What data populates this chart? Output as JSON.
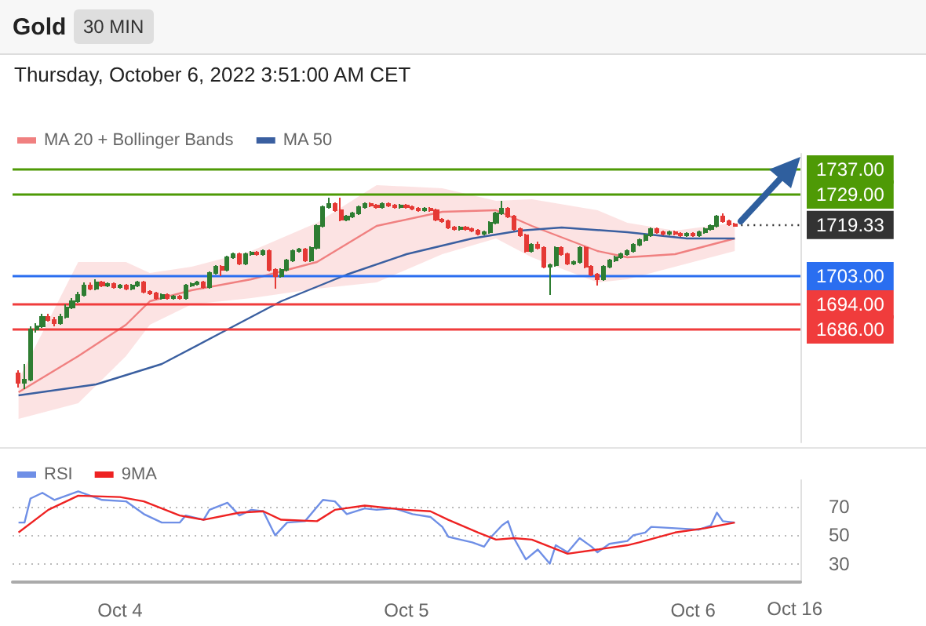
{
  "chart_data": [
    {
      "type": "candlestick",
      "title": "Gold",
      "subtitle": "Thursday, October 6, 2022 3:51:00 AM CET",
      "annotations": [
        "30 MIN"
      ],
      "legend": "top left",
      "tick_labels": false,
      "xlim": [
        "2022-10-03T15:00",
        "2022-10-06T09:00"
      ],
      "ylim": [
        1650,
        1742
      ],
      "series": [
        {
          "colors": [
            "#e53935",
            "#2e7d32",
            "#2e7d32",
            "#2e7d32",
            "#2e7d32",
            "#e53935",
            "#e53935",
            "#2e7d32",
            "#2e7d32",
            "#2e7d32",
            "#2e7d32",
            "#2e7d32",
            "#e53935",
            "#2e7d32",
            "#e53935",
            "#2e7d32",
            "#e53935",
            "#2e7d32",
            "#e53935",
            "#2e7d32",
            "#2e7d32",
            "#e53935",
            "#e53935",
            "#e53935",
            "#2e7d32",
            "#e53935",
            "#2e7d32",
            "#e53935",
            "#2e7d32",
            "#2e7d32",
            "#2e7d32",
            "#e53935",
            "#2e7d32",
            "#2e7d32",
            "#e53935",
            "#2e7d32",
            "#2e7d32",
            "#e53935",
            "#2e7d32",
            "#2e7d32",
            "#e53935",
            "#2e7d32",
            "#e53935",
            "#e53935",
            "#2e7d32",
            "#2e7d32",
            "#2e7d32",
            "#2e7d32",
            "#e53935",
            "#2e7d32",
            "#2e7d32",
            "#2e7d32",
            "#2e7d32",
            "#e53935",
            "#e53935",
            "#2e7d32",
            "#2e7d32",
            "#2e7d32",
            "#2e7d32",
            "#e53935",
            "#e53935",
            "#2e7d32",
            "#e53935",
            "#e53935",
            "#2e7d32",
            "#e53935",
            "#e53935",
            "#e53935",
            "#2e7d32",
            "#e53935",
            "#e53935",
            "#e53935",
            "#e53935",
            "#e53935",
            "#2e7d32",
            "#e53935",
            "#e53935",
            "#e53935",
            "#2e7d32",
            "#2e7d32",
            "#2e7d32",
            "#2e7d32",
            "#e53935",
            "#e53935",
            "#e53935",
            "#e53935",
            "#2e7d32",
            "#e53935",
            "#e53935",
            "#2e7d32",
            "#2e7d32",
            "#e53935",
            "#e53935",
            "#2e7d32",
            "#2e7d32",
            "#e53935",
            "#e53935",
            "#e53935",
            "#2e7d32",
            "#2e7d32",
            "#2e7d32",
            "#2e7d32",
            "#2e7d32",
            "#2e7d32",
            "#2e7d32",
            "#2e7d32",
            "#2e7d32",
            "#e53935",
            "#e53935",
            "#2e7d32",
            "#e53935",
            "#e53935",
            "#2e7d32",
            "#e53935",
            "#2e7d32",
            "#2e7d32",
            "#2e7d32",
            "#2e7d32",
            "#e53935",
            "#e53935",
            "#e53935"
          ],
          "x": [
            "2022-10-03T15:30",
            "2022-10-03T16:00",
            "2022-10-03T16:30",
            "2022-10-03T17:00",
            "2022-10-03T17:30",
            "2022-10-03T18:00",
            "2022-10-03T18:30",
            "2022-10-03T19:00",
            "2022-10-03T19:30",
            "2022-10-03T20:00",
            "2022-10-03T20:30",
            "2022-10-03T21:00",
            "2022-10-03T21:30",
            "2022-10-03T22:00",
            "2022-10-03T22:30",
            "2022-10-03T23:00",
            "2022-10-03T23:30",
            "2022-10-04T00:00",
            "2022-10-04T00:30",
            "2022-10-04T01:00",
            "2022-10-04T01:30",
            "2022-10-04T02:00",
            "2022-10-04T02:30",
            "2022-10-04T03:00",
            "2022-10-04T03:30",
            "2022-10-04T04:00",
            "2022-10-04T04:30",
            "2022-10-04T05:00",
            "2022-10-04T05:30",
            "2022-10-04T06:00",
            "2022-10-04T06:30",
            "2022-10-04T07:00",
            "2022-10-04T07:30",
            "2022-10-04T08:00",
            "2022-10-04T08:30",
            "2022-10-04T09:00",
            "2022-10-04T09:30",
            "2022-10-04T10:00",
            "2022-10-04T10:30",
            "2022-10-04T11:00",
            "2022-10-04T11:30",
            "2022-10-04T12:00",
            "2022-10-04T12:30",
            "2022-10-04T13:00",
            "2022-10-04T13:30",
            "2022-10-04T14:00",
            "2022-10-04T14:30",
            "2022-10-04T15:00",
            "2022-10-04T15:30",
            "2022-10-04T16:00",
            "2022-10-04T16:30",
            "2022-10-04T17:00",
            "2022-10-04T17:30",
            "2022-10-04T18:00",
            "2022-10-04T18:30",
            "2022-10-04T19:00",
            "2022-10-04T19:30",
            "2022-10-04T20:00",
            "2022-10-04T20:30",
            "2022-10-04T21:00",
            "2022-10-04T21:30",
            "2022-10-04T22:00",
            "2022-10-04T22:30",
            "2022-10-04T23:00",
            "2022-10-04T23:30",
            "2022-10-05T00:00",
            "2022-10-05T00:30",
            "2022-10-05T01:00",
            "2022-10-05T01:30",
            "2022-10-05T02:00",
            "2022-10-05T02:30",
            "2022-10-05T03:00",
            "2022-10-05T03:30",
            "2022-10-05T04:00",
            "2022-10-05T04:30",
            "2022-10-05T05:00",
            "2022-10-05T05:30",
            "2022-10-05T06:00",
            "2022-10-05T06:30",
            "2022-10-05T07:00",
            "2022-10-05T07:30",
            "2022-10-05T08:00",
            "2022-10-05T08:30",
            "2022-10-05T09:00",
            "2022-10-05T09:30",
            "2022-10-05T10:00",
            "2022-10-05T10:30",
            "2022-10-05T11:00",
            "2022-10-05T11:30",
            "2022-10-05T12:00",
            "2022-10-05T12:30",
            "2022-10-05T13:00",
            "2022-10-05T13:30",
            "2022-10-05T14:00",
            "2022-10-05T14:30",
            "2022-10-05T15:00",
            "2022-10-05T15:30",
            "2022-10-05T16:00",
            "2022-10-05T16:30",
            "2022-10-05T17:00",
            "2022-10-05T17:30",
            "2022-10-05T18:00",
            "2022-10-05T18:30",
            "2022-10-05T19:00",
            "2022-10-05T19:30",
            "2022-10-05T20:00",
            "2022-10-05T20:30",
            "2022-10-05T21:00",
            "2022-10-05T21:30",
            "2022-10-05T22:00",
            "2022-10-05T22:30",
            "2022-10-05T23:00",
            "2022-10-05T23:30",
            "2022-10-06T00:00",
            "2022-10-06T00:30",
            "2022-10-06T01:00",
            "2022-10-06T01:30",
            "2022-10-06T02:00",
            "2022-10-06T02:30",
            "2022-10-06T03:00",
            "2022-10-06T03:30"
          ],
          "ohlc": [
            [
              1672,
              1673,
              1667.5,
              1669
            ],
            [
              1669,
              1675,
              1667,
              1670
            ],
            [
              1670,
              1687,
              1669.5,
              1686
            ],
            [
              1686,
              1688,
              1685,
              1687
            ],
            [
              1687,
              1691,
              1686.5,
              1690
            ],
            [
              1690,
              1691,
              1688.5,
              1689
            ],
            [
              1689,
              1690,
              1687,
              1688
            ],
            [
              1688,
              1691,
              1687.5,
              1690
            ],
            [
              1690,
              1694,
              1689.5,
              1693
            ],
            [
              1693,
              1696,
              1692.5,
              1695
            ],
            [
              1695,
              1698,
              1694.5,
              1697
            ],
            [
              1697,
              1701,
              1696.5,
              1700
            ],
            [
              1700,
              1701,
              1698.5,
              1699
            ],
            [
              1699,
              1702,
              1698.5,
              1701
            ],
            [
              1701,
              1701.5,
              1699.5,
              1700
            ],
            [
              1700,
              1701,
              1699.5,
              1700.5
            ],
            [
              1700.5,
              1701,
              1699,
              1699.5
            ],
            [
              1699.5,
              1700.5,
              1699,
              1700
            ],
            [
              1700,
              1700.5,
              1698.5,
              1699
            ],
            [
              1699,
              1700.5,
              1698.5,
              1700
            ],
            [
              1700,
              1701.5,
              1699.5,
              1701
            ],
            [
              1701,
              1701.5,
              1697.5,
              1698
            ],
            [
              1698,
              1698.5,
              1697,
              1697.5
            ],
            [
              1697.5,
              1698,
              1695.5,
              1696
            ],
            [
              1696,
              1697.5,
              1695.5,
              1697
            ],
            [
              1697,
              1697.5,
              1695.5,
              1696
            ],
            [
              1696,
              1697,
              1695.5,
              1696.5
            ],
            [
              1696.5,
              1697,
              1695.5,
              1696
            ],
            [
              1696,
              1700.5,
              1695.5,
              1700
            ],
            [
              1700,
              1701,
              1699.5,
              1700.5
            ],
            [
              1700.5,
              1701.5,
              1700,
              1701
            ],
            [
              1701,
              1701.5,
              1699,
              1699.5
            ],
            [
              1699.5,
              1704.5,
              1699,
              1704
            ],
            [
              1704,
              1706.5,
              1703.5,
              1706
            ],
            [
              1706,
              1706.5,
              1703,
              1705
            ],
            [
              1705,
              1709.5,
              1704.5,
              1709
            ],
            [
              1709,
              1710.5,
              1708.5,
              1710
            ],
            [
              1710,
              1710.5,
              1706.5,
              1707
            ],
            [
              1707,
              1710.5,
              1706.5,
              1710
            ],
            [
              1710,
              1711,
              1709.5,
              1710.5
            ],
            [
              1710.5,
              1711,
              1709.5,
              1710
            ],
            [
              1710,
              1711.5,
              1709.5,
              1711
            ],
            [
              1711,
              1711.5,
              1704.5,
              1705
            ],
            [
              1705,
              1705.5,
              1699,
              1703
            ],
            [
              1703,
              1705.5,
              1702.5,
              1705
            ],
            [
              1705,
              1708.5,
              1704.5,
              1708
            ],
            [
              1708,
              1711.5,
              1707.5,
              1711
            ],
            [
              1711,
              1712,
              1710.5,
              1711.5
            ],
            [
              1711.5,
              1712,
              1707.5,
              1708
            ],
            [
              1708,
              1712.5,
              1707.5,
              1712
            ],
            [
              1712,
              1719.5,
              1711.5,
              1719
            ],
            [
              1719,
              1725.5,
              1718.5,
              1725
            ],
            [
              1725,
              1728,
              1724.5,
              1726
            ],
            [
              1726,
              1726.5,
              1723.5,
              1724
            ],
            [
              1724,
              1728,
              1720.5,
              1721
            ],
            [
              1721,
              1722.5,
              1720.5,
              1722
            ],
            [
              1722,
              1723.5,
              1721.5,
              1723
            ],
            [
              1723,
              1725.5,
              1722.5,
              1725
            ],
            [
              1725,
              1726.5,
              1724.5,
              1726
            ],
            [
              1726,
              1726.5,
              1725,
              1725.5
            ],
            [
              1725.5,
              1726,
              1724.5,
              1725
            ],
            [
              1725,
              1726.5,
              1724.5,
              1726
            ],
            [
              1726,
              1726.5,
              1725,
              1725.5
            ],
            [
              1725.5,
              1726,
              1724.5,
              1725
            ],
            [
              1725,
              1726,
              1724.5,
              1725.5
            ],
            [
              1725.5,
              1726,
              1724.5,
              1725
            ],
            [
              1725,
              1725.5,
              1724,
              1724.5
            ],
            [
              1724.5,
              1725,
              1723.5,
              1724
            ],
            [
              1724,
              1725,
              1723.5,
              1724.5
            ],
            [
              1724.5,
              1725,
              1723.5,
              1724
            ],
            [
              1724,
              1724.5,
              1720.5,
              1721
            ],
            [
              1721,
              1721.5,
              1720,
              1720.5
            ],
            [
              1720.5,
              1721,
              1718,
              1718.5
            ],
            [
              1718.5,
              1719,
              1717.5,
              1718
            ],
            [
              1718,
              1719,
              1717.5,
              1718.5
            ],
            [
              1718.5,
              1719,
              1717.5,
              1718
            ],
            [
              1718,
              1718.5,
              1717,
              1717.5
            ],
            [
              1717.5,
              1718,
              1716,
              1716.5
            ],
            [
              1716.5,
              1717.5,
              1716,
              1717
            ],
            [
              1717,
              1720.5,
              1716.5,
              1720
            ],
            [
              1720,
              1723.5,
              1719.5,
              1723
            ],
            [
              1723,
              1727,
              1722.5,
              1724.5
            ],
            [
              1724.5,
              1725,
              1721.5,
              1722
            ],
            [
              1722,
              1722.5,
              1717.5,
              1718
            ],
            [
              1718,
              1718.5,
              1715.5,
              1716
            ],
            [
              1716,
              1716.5,
              1710.5,
              1711
            ],
            [
              1711,
              1713.5,
              1710.5,
              1713
            ],
            [
              1713,
              1714,
              1711.5,
              1712
            ],
            [
              1712,
              1712.5,
              1705.5,
              1706
            ],
            [
              1706,
              1707,
              1697,
              1706.5
            ],
            [
              1706.5,
              1712.5,
              1706,
              1712
            ],
            [
              1712,
              1712.5,
              1709.5,
              1710
            ],
            [
              1710,
              1710.5,
              1706.5,
              1707
            ],
            [
              1707,
              1708,
              1706.5,
              1707.5
            ],
            [
              1707.5,
              1712.5,
              1707,
              1712
            ],
            [
              1712,
              1712.5,
              1705.5,
              1706
            ],
            [
              1706,
              1706.5,
              1703,
              1703.5
            ],
            [
              1703.5,
              1704,
              1700,
              1702
            ],
            [
              1702,
              1706.5,
              1701.5,
              1706
            ],
            [
              1706,
              1708.5,
              1705.5,
              1708
            ],
            [
              1708,
              1709.5,
              1707.5,
              1709
            ],
            [
              1709,
              1710.5,
              1708.5,
              1710
            ],
            [
              1710,
              1711.5,
              1709.5,
              1711
            ],
            [
              1711,
              1713.5,
              1710.5,
              1713
            ],
            [
              1713,
              1715,
              1712.5,
              1714.5
            ],
            [
              1714.5,
              1716.5,
              1714,
              1716
            ],
            [
              1716,
              1718.5,
              1715.5,
              1718
            ],
            [
              1718,
              1718.5,
              1716.5,
              1717
            ],
            [
              1717,
              1717.5,
              1716,
              1716.5
            ],
            [
              1716.5,
              1717.5,
              1716,
              1717
            ],
            [
              1717,
              1717.5,
              1716,
              1716.5
            ],
            [
              1716.5,
              1717,
              1715.5,
              1716
            ],
            [
              1716,
              1717,
              1715.5,
              1716.5
            ],
            [
              1716.5,
              1717,
              1715.5,
              1716
            ],
            [
              1716,
              1717.5,
              1715.5,
              1717
            ],
            [
              1717,
              1718.5,
              1716.5,
              1718
            ],
            [
              1718,
              1719.5,
              1717.5,
              1719
            ],
            [
              1719,
              1722.5,
              1718.5,
              1722
            ],
            [
              1722,
              1723,
              1720,
              1720.5
            ],
            [
              1720.5,
              1721,
              1719,
              1719.5
            ],
            [
              1719.5,
              1720,
              1719,
              1719
            ]
          ]
        },
        {
          "type": "line",
          "name": "MA 20 + Bollinger Bands",
          "color": "#f08080",
          "x": [
            "2022-10-03T15:30",
            "2022-10-03T20:30",
            "2022-10-04T00:30",
            "2022-10-04T02:30",
            "2022-10-04T06:00",
            "2022-10-04T11:00",
            "2022-10-04T16:30",
            "2022-10-04T21:30",
            "2022-10-05T03:00",
            "2022-10-05T07:30",
            "2022-10-05T10:30",
            "2022-10-05T16:00",
            "2022-10-05T18:30",
            "2022-10-05T22:30",
            "2022-10-06T03:30"
          ],
          "values": [
            1666,
            1677.5,
            1687.5,
            1695,
            1698.5,
            1702,
            1707.5,
            1719,
            1723.5,
            1724,
            1719,
            1711,
            1709,
            1710,
            1715
          ],
          "upper": [
            1670,
            1707.5,
            1707.5,
            1704,
            1706,
            1711,
            1720,
            1732,
            1731,
            1727,
            1727.5,
            1724,
            1720,
            1717.5,
            1720
          ],
          "lower": [
            1657.5,
            1662.5,
            1677.5,
            1687.5,
            1694,
            1696,
            1699,
            1701,
            1710,
            1715,
            1709,
            1701,
            1702,
            1706,
            1711
          ]
        },
        {
          "type": "line",
          "name": "MA 50",
          "color": "#3a5fa0",
          "x": [
            "2022-10-03T15:30",
            "2022-10-03T22:00",
            "2022-10-04T03:30",
            "2022-10-04T08:30",
            "2022-10-04T13:30",
            "2022-10-04T19:00",
            "2022-10-05T00:00",
            "2022-10-05T05:30",
            "2022-10-05T09:30",
            "2022-10-05T13:00",
            "2022-10-05T18:30",
            "2022-10-05T23:30",
            "2022-10-06T03:30"
          ],
          "values": [
            1665,
            1668.5,
            1675,
            1685,
            1695,
            1703.5,
            1710,
            1715,
            1717.5,
            1718.5,
            1717,
            1715,
            1715
          ]
        }
      ],
      "ref_lines": [
        {
          "axis": "y",
          "value": 1737,
          "label": "1737.00",
          "color": "#4e9a06"
        },
        {
          "axis": "y",
          "value": 1729,
          "label": "1729.00",
          "color": "#4e9a06"
        },
        {
          "axis": "y",
          "value": 1719.33,
          "label": "1719.33",
          "color": "#333333",
          "line_style": "dotted"
        },
        {
          "axis": "y",
          "value": 1703,
          "label": "1703.00",
          "color": "#2a6ef0"
        },
        {
          "axis": "y",
          "value": 1694,
          "label": "1694.00",
          "color": "#f03c3c"
        },
        {
          "axis": "y",
          "value": 1686,
          "label": "1686.00",
          "color": "#f03c3c"
        }
      ]
    },
    {
      "type": "line",
      "legend": "top left",
      "grid": "y",
      "xlim": [
        "2022-10-03T15:00",
        "2022-10-06T09:00"
      ],
      "xticks": [
        {
          "value": "2022-10-04",
          "label": "Oct 4"
        },
        {
          "value": "2022-10-05",
          "label": "Oct 5"
        },
        {
          "value": "2022-10-06",
          "label": "Oct 6"
        }
      ],
      "annotations": [
        "Oct 16"
      ],
      "ylim": [
        17,
        89
      ],
      "yticks": [
        30,
        50,
        70
      ],
      "series": [
        {
          "name": "RSI",
          "color": "#6f8fe6",
          "x": [
            "2022-10-03T15:30",
            "2022-10-03T16:00",
            "2022-10-03T16:30",
            "2022-10-03T17:30",
            "2022-10-03T18:30",
            "2022-10-03T20:30",
            "2022-10-03T22:30",
            "2022-10-04T00:30",
            "2022-10-04T02:00",
            "2022-10-04T03:30",
            "2022-10-04T05:00",
            "2022-10-04T05:30",
            "2022-10-04T07:00",
            "2022-10-04T07:30",
            "2022-10-04T09:00",
            "2022-10-04T10:00",
            "2022-10-04T11:00",
            "2022-10-04T12:00",
            "2022-10-04T13:00",
            "2022-10-04T14:00",
            "2022-10-04T15:30",
            "2022-10-04T16:30",
            "2022-10-04T17:00",
            "2022-10-04T18:00",
            "2022-10-04T19:00",
            "2022-10-04T20:30",
            "2022-10-04T21:30",
            "2022-10-04T23:00",
            "2022-10-05T00:30",
            "2022-10-05T02:00",
            "2022-10-05T03:00",
            "2022-10-05T03:30",
            "2022-10-05T04:30",
            "2022-10-05T05:30",
            "2022-10-05T06:30",
            "2022-10-05T07:00",
            "2022-10-05T08:00",
            "2022-10-05T08:30",
            "2022-10-05T09:00",
            "2022-10-05T10:00",
            "2022-10-05T11:00",
            "2022-10-05T12:00",
            "2022-10-05T12:30",
            "2022-10-05T13:30",
            "2022-10-05T14:30",
            "2022-10-05T15:30",
            "2022-10-05T16:00",
            "2022-10-05T17:00",
            "2022-10-05T18:30",
            "2022-10-05T19:00",
            "2022-10-05T20:00",
            "2022-10-05T20:30",
            "2022-10-05T22:30",
            "2022-10-06T00:30",
            "2022-10-06T01:30",
            "2022-10-06T02:00",
            "2022-10-06T02:30",
            "2022-10-06T03:30"
          ],
          "values": [
            59,
            59,
            76,
            80,
            75,
            81,
            75,
            74,
            65,
            59,
            59,
            64,
            61,
            68,
            73,
            64,
            68,
            67,
            50,
            59,
            60,
            70,
            75,
            74,
            65,
            69,
            68,
            69,
            65,
            63,
            56,
            49,
            47,
            45,
            42,
            48,
            57,
            60,
            48,
            33,
            40,
            30,
            43,
            38,
            48,
            42,
            38,
            44,
            46,
            50,
            52,
            56,
            55,
            54,
            57,
            66,
            60,
            59
          ]
        },
        {
          "name": "9MA",
          "color": "#ee2222",
          "x": [
            "2022-10-03T15:30",
            "2022-10-03T18:00",
            "2022-10-03T20:30",
            "2022-10-04T00:00",
            "2022-10-04T02:00",
            "2022-10-04T05:00",
            "2022-10-04T07:00",
            "2022-10-04T10:00",
            "2022-10-04T12:00",
            "2022-10-04T13:30",
            "2022-10-04T16:30",
            "2022-10-04T18:00",
            "2022-10-04T20:30",
            "2022-10-05T00:00",
            "2022-10-05T02:00",
            "2022-10-05T03:30",
            "2022-10-05T06:00",
            "2022-10-05T07:30",
            "2022-10-05T09:00",
            "2022-10-05T10:30",
            "2022-10-05T13:30",
            "2022-10-05T16:00",
            "2022-10-05T18:30",
            "2022-10-05T19:30",
            "2022-10-05T22:30",
            "2022-10-06T01:00",
            "2022-10-06T03:30"
          ],
          "values": [
            52,
            68,
            78,
            77,
            74,
            64,
            61,
            66,
            67,
            61,
            60,
            68,
            71,
            68,
            67,
            61,
            52,
            47,
            48,
            47,
            37,
            40,
            43,
            45,
            52,
            55,
            59
          ]
        }
      ]
    }
  ]
}
